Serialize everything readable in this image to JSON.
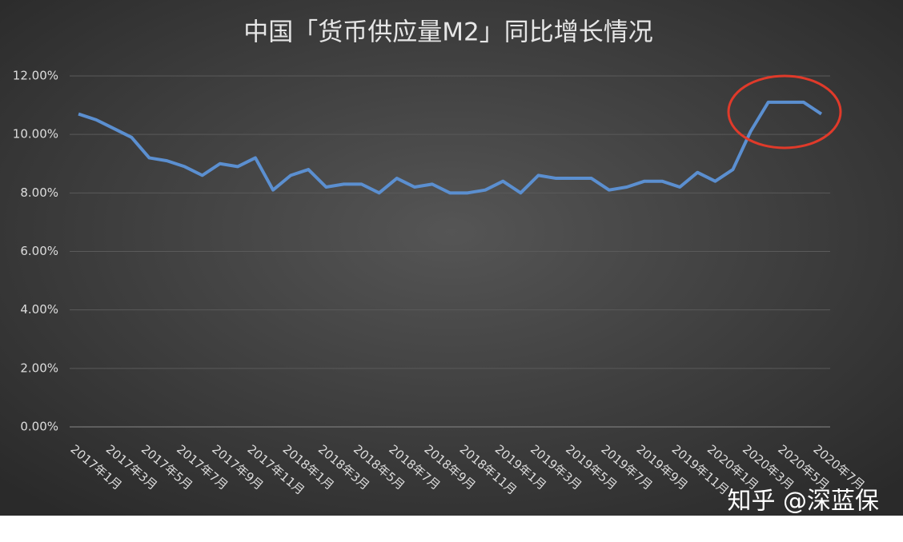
{
  "chart_data": {
    "type": "line",
    "title": "中国「货币供应量M2」同比增长情况",
    "categories": [
      "2017年1月",
      null,
      "2017年3月",
      null,
      "2017年5月",
      null,
      "2017年7月",
      null,
      "2017年9月",
      null,
      "2017年11月",
      null,
      "2018年1月",
      null,
      "2018年3月",
      null,
      "2018年5月",
      null,
      "2018年7月",
      null,
      "2018年9月",
      null,
      "2018年11月",
      null,
      "2019年1月",
      null,
      "2019年3月",
      null,
      "2019年5月",
      null,
      "2019年7月",
      null,
      "2019年9月",
      null,
      "2019年11月",
      null,
      "2020年1月",
      null,
      "2020年3月",
      null,
      "2020年5月",
      null,
      "2020年7月"
    ],
    "series": [
      {
        "name": "M2",
        "color": "#5b8fd0",
        "values": [
          10.7,
          10.5,
          10.2,
          9.9,
          9.2,
          9.1,
          8.9,
          8.6,
          9.0,
          8.9,
          9.2,
          8.1,
          8.6,
          8.8,
          8.2,
          8.3,
          8.3,
          8.0,
          8.5,
          8.2,
          8.3,
          8.0,
          8.0,
          8.1,
          8.4,
          8.0,
          8.6,
          8.5,
          8.5,
          8.5,
          8.1,
          8.2,
          8.4,
          8.4,
          8.2,
          8.7,
          8.4,
          8.8,
          10.1,
          11.1,
          11.1,
          11.1,
          10.7
        ]
      }
    ],
    "ylim": [
      0,
      12
    ],
    "yticks": [
      {
        "value": 0,
        "label": "0.00%"
      },
      {
        "value": 2,
        "label": "2.00%"
      },
      {
        "value": 4,
        "label": "4.00%"
      },
      {
        "value": 6,
        "label": "6.00%"
      },
      {
        "value": 8,
        "label": "8.00%"
      },
      {
        "value": 10,
        "label": "10.00%"
      },
      {
        "value": 12,
        "label": "12.00%"
      }
    ],
    "grid": true,
    "watermark": "知乎 @深蓝保"
  }
}
